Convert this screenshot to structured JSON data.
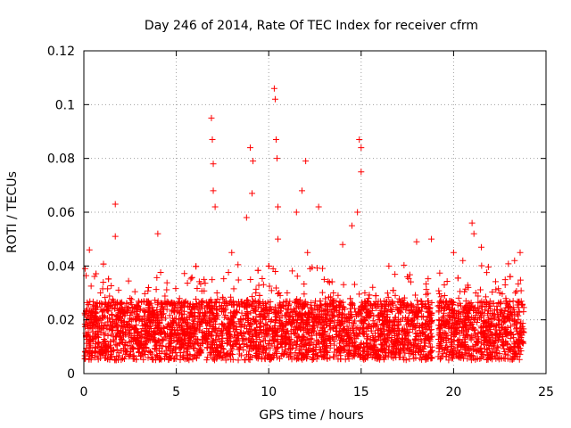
{
  "chart_data": {
    "type": "scatter",
    "title": "Day 246 of 2014, Rate Of TEC Index for receiver cfrm",
    "xlabel": "GPS time / hours",
    "ylabel": "ROTI / TECUs",
    "xlim": [
      0,
      25
    ],
    "ylim": [
      0,
      0.12
    ],
    "xticks": [
      0,
      5,
      10,
      15,
      20,
      25
    ],
    "xtick_labels": [
      "0",
      "5",
      "10",
      "15",
      "20",
      "25"
    ],
    "yticks": [
      0,
      0.02,
      0.04,
      0.06,
      0.08,
      0.1,
      0.12
    ],
    "ytick_labels": [
      "0",
      "0.02",
      "0.04",
      "0.06",
      "0.08",
      "0.1",
      "0.12"
    ],
    "grid": true,
    "marker": "plus",
    "color": "#ff0000",
    "data_gap_hours": [
      18.85,
      19.15
    ],
    "series": [
      {
        "name": "ROTI",
        "x": [
          0.1,
          0.3,
          0.3,
          0.5,
          0.9,
          1.2,
          1.5,
          1.7,
          1.7,
          2.0,
          2.5,
          3.0,
          3.5,
          4.0,
          4.1,
          4.6,
          5.2,
          6.0,
          6.5,
          6.9,
          6.95,
          7.0,
          7.0,
          7.1,
          7.2,
          7.5,
          8.0,
          8.5,
          8.8,
          9.0,
          9.1,
          9.15,
          9.3,
          9.5,
          10.0,
          10.3,
          10.35,
          10.4,
          10.45,
          10.5,
          10.5,
          10.8,
          11.0,
          11.5,
          11.8,
          12.0,
          12.1,
          12.3,
          12.7,
          13.0,
          13.5,
          14.0,
          14.5,
          14.8,
          14.9,
          15.0,
          15.0,
          15.2,
          16.0,
          16.5,
          17.0,
          17.5,
          18.0,
          18.5,
          18.8,
          19.2,
          19.5,
          20.0,
          20.5,
          21.0,
          21.1,
          21.2,
          21.5,
          22.0,
          22.5,
          23.0,
          23.3,
          23.6
        ],
        "y": [
          0.015,
          0.046,
          0.02,
          0.012,
          0.03,
          0.018,
          0.022,
          0.063,
          0.051,
          0.016,
          0.028,
          0.014,
          0.032,
          0.052,
          0.019,
          0.026,
          0.017,
          0.024,
          0.035,
          0.095,
          0.087,
          0.078,
          0.068,
          0.062,
          0.03,
          0.015,
          0.045,
          0.02,
          0.058,
          0.084,
          0.067,
          0.079,
          0.03,
          0.022,
          0.04,
          0.106,
          0.102,
          0.087,
          0.08,
          0.062,
          0.05,
          0.025,
          0.03,
          0.06,
          0.068,
          0.079,
          0.045,
          0.022,
          0.062,
          0.035,
          0.03,
          0.048,
          0.055,
          0.06,
          0.087,
          0.084,
          0.075,
          0.03,
          0.02,
          0.04,
          0.018,
          0.036,
          0.049,
          0.025,
          0.05,
          0.02,
          0.033,
          0.045,
          0.042,
          0.056,
          0.052,
          0.03,
          0.047,
          0.018,
          0.03,
          0.025,
          0.042,
          0.045
        ]
      }
    ]
  }
}
